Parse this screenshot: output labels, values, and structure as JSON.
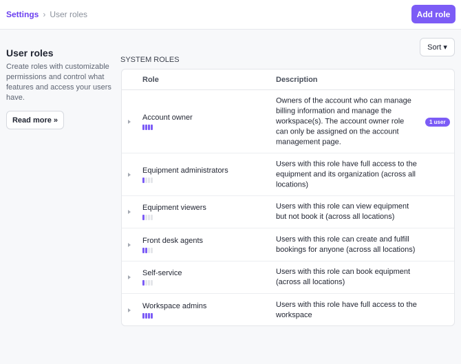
{
  "breadcrumb": {
    "parent": "Settings",
    "current": "User roles"
  },
  "header": {
    "add_role_label": "Add role"
  },
  "sidebar": {
    "title": "User roles",
    "description": "Create roles with customizable permissions and control what features and access your users have.",
    "read_more_label": "Read more »"
  },
  "toolbar": {
    "sort_label": "Sort ▾"
  },
  "section_title": "SYSTEM ROLES",
  "table": {
    "columns": [
      "Role",
      "Description"
    ],
    "rows": [
      {
        "name": "Account owner",
        "permission_level": 4,
        "description": "Owners of the account who can manage billing information and manage the workspace(s). The account owner role can only be assigned on the account management page.",
        "badge": "1 user"
      },
      {
        "name": "Equipment administrators",
        "permission_level": 1,
        "description": "Users with this role have full access to the equipment and its organization (across all locations)"
      },
      {
        "name": "Equipment viewers",
        "permission_level": 1,
        "description": "Users with this role can view equipment but not book it (across all locations)"
      },
      {
        "name": "Front desk agents",
        "permission_level": 2,
        "description": "Users with this role can create and fulfill bookings for anyone (across all locations)"
      },
      {
        "name": "Self-service",
        "permission_level": 1,
        "description": "Users with this role can book equipment (across all locations)"
      },
      {
        "name": "Workspace admins",
        "permission_level": 4,
        "description": "Users with this role have full access to the workspace"
      }
    ]
  },
  "colors": {
    "accent": "#7c5cf6"
  }
}
